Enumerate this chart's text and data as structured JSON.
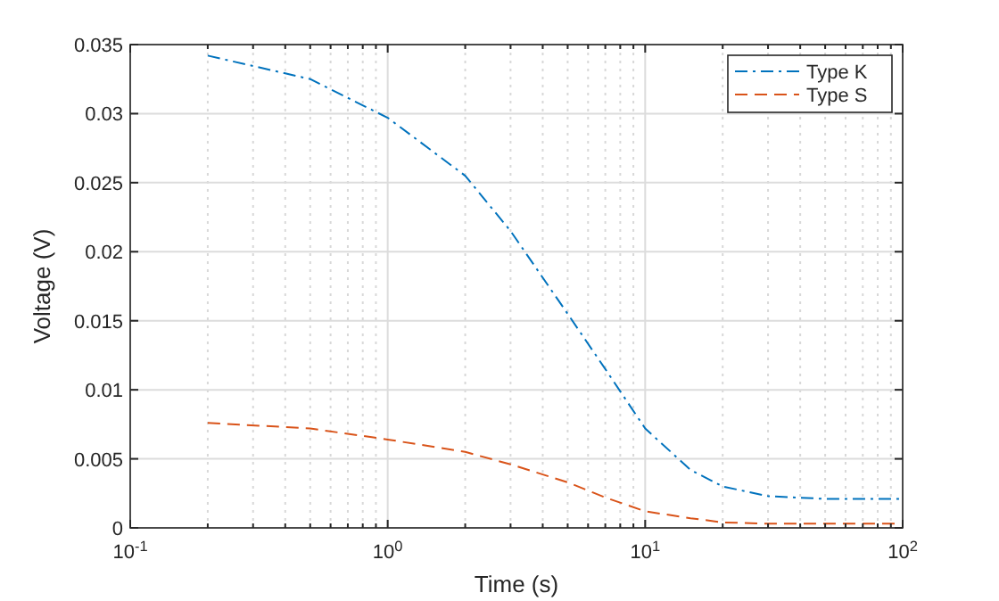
{
  "chart_data": {
    "type": "line",
    "xlabel": "Time (s)",
    "ylabel": "Voltage (V)",
    "log": "x",
    "grid": true,
    "legend": "top right",
    "xlim": [
      0.1,
      100
    ],
    "xticks": [
      {
        "value": 0.1,
        "label": "10$^{-1}$"
      },
      {
        "value": 0.2,
        "label": null
      },
      {
        "value": 0.3,
        "label": null
      },
      {
        "value": 0.4,
        "label": null
      },
      {
        "value": 0.5,
        "label": null
      },
      {
        "value": 0.6,
        "label": null
      },
      {
        "value": 0.7,
        "label": null
      },
      {
        "value": 0.8,
        "label": null
      },
      {
        "value": 0.9,
        "label": null
      },
      {
        "value": 1,
        "label": "10$^{0}$"
      },
      {
        "value": 2,
        "label": null
      },
      {
        "value": 3,
        "label": null
      },
      {
        "value": 4,
        "label": null
      },
      {
        "value": 5,
        "label": null
      },
      {
        "value": 6,
        "label": null
      },
      {
        "value": 7,
        "label": null
      },
      {
        "value": 8,
        "label": null
      },
      {
        "value": 9,
        "label": null
      },
      {
        "value": 10,
        "label": "10$^{1}$"
      },
      {
        "value": 20,
        "label": null
      },
      {
        "value": 30,
        "label": null
      },
      {
        "value": 40,
        "label": null
      },
      {
        "value": 50,
        "label": null
      },
      {
        "value": 60,
        "label": null
      },
      {
        "value": 70,
        "label": null
      },
      {
        "value": 80,
        "label": null
      },
      {
        "value": 90,
        "label": null
      },
      {
        "value": 100,
        "label": "10$^{2}$"
      }
    ],
    "ylim": [
      0,
      0.035
    ],
    "yticks": [
      0,
      0.005,
      0.01,
      0.015,
      0.02,
      0.025,
      0.03,
      0.035
    ],
    "x": [
      0.2,
      0.5,
      1,
      2,
      3,
      5,
      7,
      10,
      15,
      20,
      30,
      50,
      100
    ],
    "series": [
      {
        "name": "Type K",
        "color": "#0072bd",
        "line_style": "dashdot",
        "values": [
          0.0342,
          0.0325,
          0.0297,
          0.0255,
          0.0215,
          0.0155,
          0.0115,
          0.0072,
          0.0042,
          0.003,
          0.0023,
          0.0021,
          0.0021
        ]
      },
      {
        "name": "Type S",
        "color": "#d95319",
        "line_style": "dashed",
        "values": [
          0.0076,
          0.0072,
          0.0064,
          0.0055,
          0.0046,
          0.0033,
          0.0022,
          0.0012,
          0.0007,
          0.0004,
          0.0003,
          0.0003,
          0.0003
        ]
      }
    ]
  }
}
